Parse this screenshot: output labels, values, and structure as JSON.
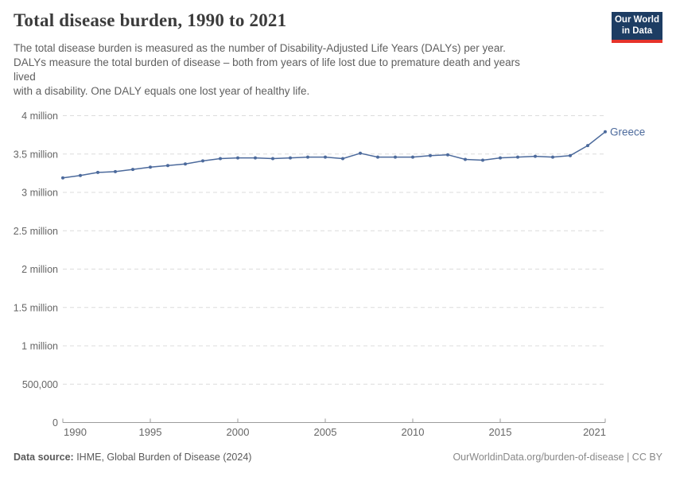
{
  "header": {
    "title": "Total disease burden, 1990 to 2021",
    "subtitle": "The total disease burden is measured as the number of Disability-Adjusted Life Years (DALYs) per year.\nDALYs measure the total burden of disease – both from years of life lost due to premature death and years\nlived\nwith a disability. One DALY equals one lost year of healthy life."
  },
  "logo": {
    "line1": "Our World",
    "line2": "in Data",
    "bg_color": "#1d3d63",
    "bar_color": "#e6332a"
  },
  "footer": {
    "source_label": "Data source:",
    "source_text": " IHME, Global Burden of Disease (2024)",
    "attribution": "OurWorldinData.org/burden-of-disease | CC BY"
  },
  "chart_data": {
    "type": "line",
    "title": "Total disease burden, 1990 to 2021",
    "entity": "Greece",
    "unit": "DALYs per year",
    "xlabel": "",
    "ylabel": "",
    "xlim": [
      1990,
      2021
    ],
    "ylim": [
      0,
      4
    ],
    "grid": "dashed-horizontal",
    "legend_position": "end-of-line-label",
    "x": [
      1990,
      1991,
      1992,
      1993,
      1994,
      1995,
      1996,
      1997,
      1998,
      1999,
      2000,
      2001,
      2002,
      2003,
      2004,
      2005,
      2006,
      2007,
      2008,
      2009,
      2010,
      2011,
      2012,
      2013,
      2014,
      2015,
      2016,
      2017,
      2018,
      2019,
      2020,
      2021
    ],
    "values_millions": [
      3.19,
      3.22,
      3.26,
      3.27,
      3.3,
      3.33,
      3.35,
      3.37,
      3.41,
      3.44,
      3.45,
      3.45,
      3.44,
      3.45,
      3.46,
      3.46,
      3.44,
      3.51,
      3.46,
      3.46,
      3.46,
      3.48,
      3.49,
      3.43,
      3.42,
      3.45,
      3.46,
      3.47,
      3.46,
      3.48,
      3.61,
      3.79
    ],
    "y_ticks": [
      {
        "v": 0,
        "label": "0"
      },
      {
        "v": 0.5,
        "label": "500,000"
      },
      {
        "v": 1,
        "label": "1 million"
      },
      {
        "v": 1.5,
        "label": "1.5 million"
      },
      {
        "v": 2,
        "label": "2 million"
      },
      {
        "v": 2.5,
        "label": "2.5 million"
      },
      {
        "v": 3,
        "label": "3 million"
      },
      {
        "v": 3.5,
        "label": "3.5 million"
      },
      {
        "v": 4,
        "label": "4 million"
      }
    ],
    "x_ticks": [
      1990,
      1995,
      2000,
      2005,
      2010,
      2015,
      2021
    ],
    "line_color": "#4C6A9C",
    "label_color": "#666666",
    "grid_color": "#dcdcdc",
    "axis_color": "#9c9c9c"
  }
}
